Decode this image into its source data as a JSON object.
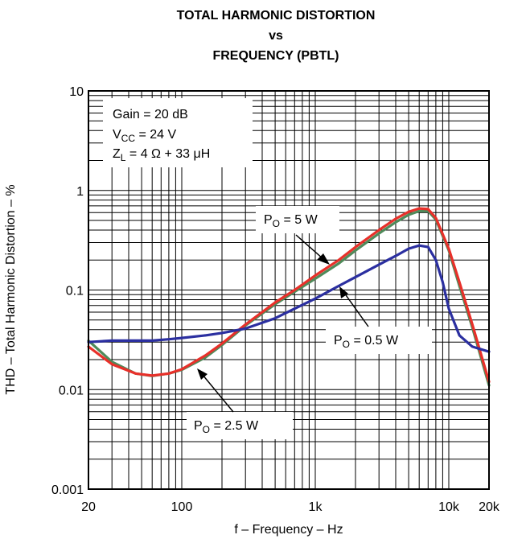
{
  "chart_data": {
    "type": "line",
    "title_lines": [
      "TOTAL HARMONIC DISTORTION",
      "vs",
      "FREQUENCY (PBTL)"
    ],
    "xlabel": "f – Frequency – Hz",
    "ylabel": "THD – Total Harmonic Distortion – %",
    "xscale": "log",
    "yscale": "log",
    "xlim": [
      20,
      20000
    ],
    "ylim": [
      0.001,
      10
    ],
    "grid": true,
    "x_ticks": [
      {
        "value": 20,
        "label": "20"
      },
      {
        "value": 100,
        "label": "100"
      },
      {
        "value": 1000,
        "label": "1k"
      },
      {
        "value": 10000,
        "label": "10k"
      },
      {
        "value": 20000,
        "label": "20k"
      }
    ],
    "y_ticks": [
      {
        "value": 10,
        "label": "10"
      },
      {
        "value": 1,
        "label": "1"
      },
      {
        "value": 0.1,
        "label": "0.1"
      },
      {
        "value": 0.01,
        "label": "0.01"
      },
      {
        "value": 0.001,
        "label": "0.001"
      }
    ],
    "conditions": {
      "gain": "Gain = 20 dB",
      "vcc_main": "V",
      "vcc_sub": "CC",
      "vcc_rest": " = 24 V",
      "zl_main": "Z",
      "zl_sub": "L",
      "zl_rest": " = 4 Ω + 33 μH"
    },
    "series": [
      {
        "id": "p5",
        "label_main": "P",
        "label_sub": "O",
        "label_rest": " = 5 W",
        "color": "#e8302a",
        "points": [
          [
            20,
            0.027
          ],
          [
            30,
            0.018
          ],
          [
            45,
            0.0145
          ],
          [
            60,
            0.0138
          ],
          [
            80,
            0.0145
          ],
          [
            100,
            0.016
          ],
          [
            150,
            0.022
          ],
          [
            200,
            0.029
          ],
          [
            300,
            0.045
          ],
          [
            500,
            0.075
          ],
          [
            700,
            0.1
          ],
          [
            1000,
            0.14
          ],
          [
            1500,
            0.2
          ],
          [
            2000,
            0.27
          ],
          [
            3000,
            0.4
          ],
          [
            4000,
            0.52
          ],
          [
            5000,
            0.61
          ],
          [
            6000,
            0.66
          ],
          [
            7000,
            0.65
          ],
          [
            8000,
            0.53
          ],
          [
            10000,
            0.26
          ],
          [
            12000,
            0.12
          ],
          [
            15000,
            0.045
          ],
          [
            20000,
            0.012
          ]
        ]
      },
      {
        "id": "p25",
        "label_main": "P",
        "label_sub": "O",
        "label_rest": " = 2.5 W",
        "color": "#4f8a5a",
        "points": [
          [
            20,
            0.031
          ],
          [
            30,
            0.019
          ],
          [
            45,
            0.0145
          ],
          [
            60,
            0.0137
          ],
          [
            80,
            0.0145
          ],
          [
            100,
            0.0158
          ],
          [
            150,
            0.021
          ],
          [
            200,
            0.028
          ],
          [
            300,
            0.044
          ],
          [
            500,
            0.072
          ],
          [
            700,
            0.096
          ],
          [
            1000,
            0.13
          ],
          [
            1500,
            0.185
          ],
          [
            2000,
            0.25
          ],
          [
            3000,
            0.37
          ],
          [
            4000,
            0.48
          ],
          [
            5000,
            0.57
          ],
          [
            6000,
            0.62
          ],
          [
            7000,
            0.62
          ],
          [
            8000,
            0.51
          ],
          [
            10000,
            0.25
          ],
          [
            12000,
            0.11
          ],
          [
            15000,
            0.042
          ],
          [
            20000,
            0.011
          ]
        ]
      },
      {
        "id": "p05",
        "label_main": "P",
        "label_sub": "O",
        "label_rest": " = 0.5 W",
        "color": "#2b2fa0",
        "points": [
          [
            20,
            0.03
          ],
          [
            30,
            0.031
          ],
          [
            45,
            0.031
          ],
          [
            60,
            0.031
          ],
          [
            80,
            0.032
          ],
          [
            100,
            0.033
          ],
          [
            150,
            0.035
          ],
          [
            200,
            0.037
          ],
          [
            300,
            0.041
          ],
          [
            500,
            0.052
          ],
          [
            700,
            0.065
          ],
          [
            1000,
            0.082
          ],
          [
            1500,
            0.11
          ],
          [
            2000,
            0.135
          ],
          [
            3000,
            0.18
          ],
          [
            4000,
            0.22
          ],
          [
            5000,
            0.26
          ],
          [
            6000,
            0.28
          ],
          [
            7000,
            0.27
          ],
          [
            8000,
            0.2
          ],
          [
            9000,
            0.12
          ],
          [
            10000,
            0.065
          ],
          [
            12000,
            0.035
          ],
          [
            15000,
            0.027
          ],
          [
            20000,
            0.024
          ]
        ]
      }
    ]
  }
}
